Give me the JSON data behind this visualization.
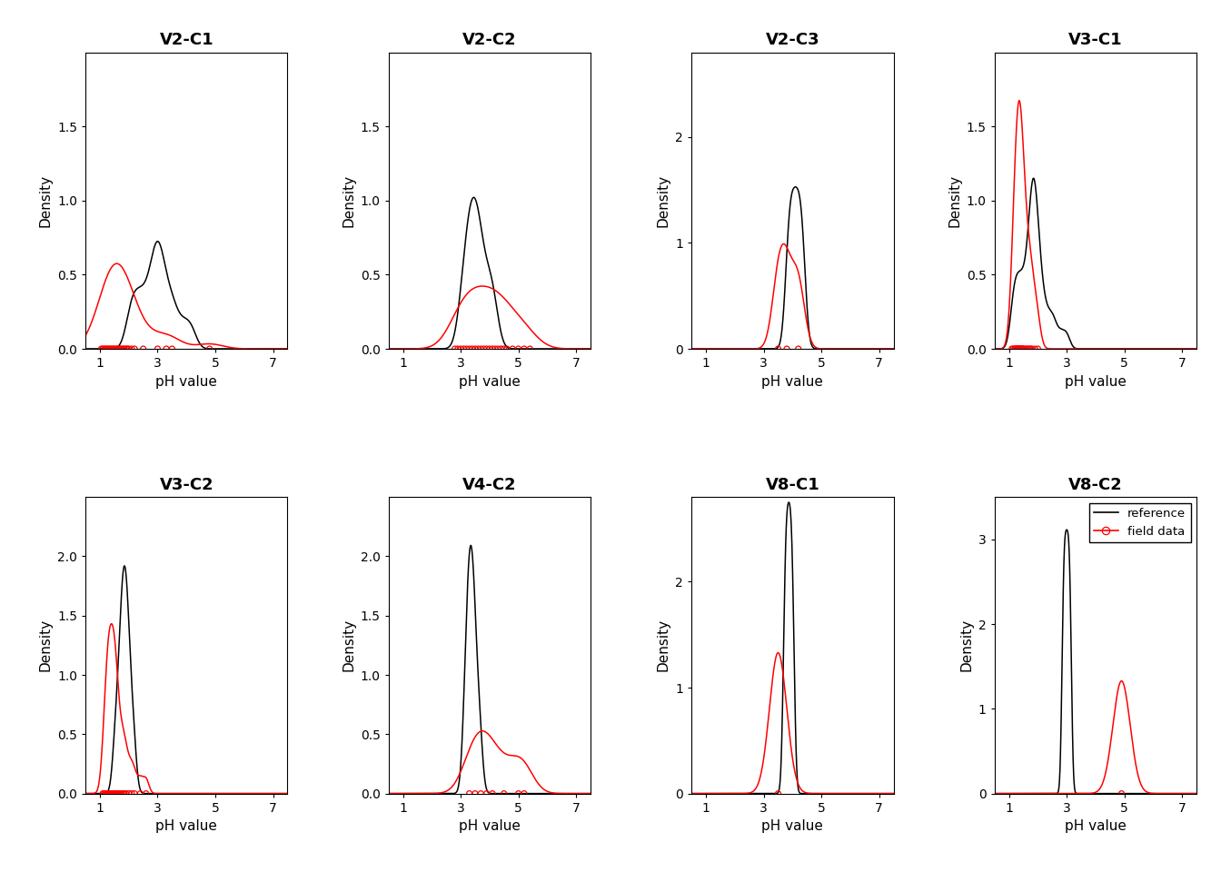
{
  "subplots": [
    {
      "title": "V2-C1",
      "ref_points": [
        2.0,
        2.1,
        2.2,
        2.3,
        2.4,
        2.5,
        2.6,
        2.7,
        2.8,
        2.85,
        2.9,
        2.95,
        3.0,
        3.05,
        3.1,
        3.15,
        3.2,
        3.3,
        3.4,
        3.5,
        3.6,
        3.8,
        4.0,
        4.2
      ],
      "ref_bw": 0.18,
      "field_points": [
        1.05,
        1.1,
        1.15,
        1.2,
        1.25,
        1.3,
        1.35,
        1.4,
        1.45,
        1.5,
        1.55,
        1.6,
        1.65,
        1.7,
        1.75,
        1.8,
        1.85,
        1.9,
        1.95,
        2.0,
        2.1,
        2.2,
        2.5,
        3.0,
        3.3,
        3.5,
        4.8
      ],
      "field_bw": 0.45,
      "ylim": [
        0,
        2.0
      ],
      "yticks": [
        0.0,
        0.5,
        1.0,
        1.5
      ]
    },
    {
      "title": "V2-C2",
      "ref_points": [
        3.0,
        3.1,
        3.2,
        3.25,
        3.3,
        3.35,
        3.4,
        3.45,
        3.5,
        3.55,
        3.6,
        3.65,
        3.7,
        3.8,
        3.9,
        4.0,
        4.1,
        4.2
      ],
      "ref_bw": 0.18,
      "field_points": [
        2.8,
        2.9,
        3.0,
        3.1,
        3.2,
        3.3,
        3.4,
        3.5,
        3.6,
        3.7,
        3.8,
        3.9,
        4.0,
        4.1,
        4.2,
        4.3,
        4.4,
        4.5,
        4.6,
        4.8,
        5.0,
        5.2,
        5.4
      ],
      "field_bw": 0.45,
      "ylim": [
        0,
        2.0
      ],
      "yticks": [
        0.0,
        0.5,
        1.0,
        1.5
      ]
    },
    {
      "title": "V2-C3",
      "ref_points": [
        3.8,
        3.85,
        3.9,
        3.95,
        4.0,
        4.05,
        4.1,
        4.15,
        4.2,
        4.25,
        4.3,
        4.35,
        4.4
      ],
      "ref_bw": 0.12,
      "field_points": [
        3.5,
        3.8,
        4.2
      ],
      "field_bw": 0.22,
      "ylim": [
        0,
        2.8
      ],
      "yticks": [
        0.0,
        1.0,
        2.0
      ]
    },
    {
      "title": "V3-C1",
      "ref_points": [
        1.1,
        1.15,
        1.2,
        1.25,
        1.3,
        1.35,
        1.4,
        1.45,
        1.5,
        1.55,
        1.6,
        1.65,
        1.7,
        1.72,
        1.74,
        1.76,
        1.78,
        1.8,
        1.82,
        1.84,
        1.86,
        1.88,
        1.9,
        1.92,
        1.94,
        1.96,
        1.98,
        2.0,
        2.05,
        2.1,
        2.15,
        2.2,
        2.3,
        2.4,
        2.5,
        2.6,
        2.8,
        3.0
      ],
      "ref_bw": 0.12,
      "field_points": [
        1.1,
        1.15,
        1.2,
        1.22,
        1.24,
        1.26,
        1.28,
        1.3,
        1.32,
        1.34,
        1.36,
        1.38,
        1.4,
        1.42,
        1.44,
        1.46,
        1.48,
        1.5,
        1.55,
        1.6,
        1.65,
        1.7,
        1.75,
        1.8,
        1.9,
        2.0
      ],
      "field_bw": 0.12,
      "ylim": [
        0,
        2.0
      ],
      "yticks": [
        0.0,
        0.5,
        1.0,
        1.5
      ]
    },
    {
      "title": "V3-C2",
      "ref_points": [
        1.5,
        1.55,
        1.6,
        1.65,
        1.7,
        1.72,
        1.74,
        1.76,
        1.78,
        1.8,
        1.82,
        1.84,
        1.86,
        1.88,
        1.9,
        1.92,
        1.94,
        1.96,
        1.98,
        2.0,
        2.05,
        2.1,
        2.15,
        2.2
      ],
      "ref_bw": 0.1,
      "field_points": [
        1.1,
        1.15,
        1.2,
        1.22,
        1.24,
        1.26,
        1.28,
        1.3,
        1.32,
        1.34,
        1.36,
        1.38,
        1.4,
        1.42,
        1.44,
        1.46,
        1.48,
        1.5,
        1.52,
        1.54,
        1.56,
        1.58,
        1.6,
        1.65,
        1.7,
        1.75,
        1.8,
        1.85,
        1.9,
        2.0,
        2.1,
        2.2,
        2.4,
        2.6
      ],
      "field_bw": 0.1,
      "ylim": [
        0,
        2.5
      ],
      "yticks": [
        0.0,
        0.5,
        1.0,
        1.5,
        2.0
      ]
    },
    {
      "title": "V4-C2",
      "ref_points": [
        3.1,
        3.15,
        3.2,
        3.22,
        3.24,
        3.26,
        3.28,
        3.3,
        3.32,
        3.34,
        3.36,
        3.38,
        3.4,
        3.42,
        3.44,
        3.46,
        3.48,
        3.5,
        3.55,
        3.6,
        3.65,
        3.7
      ],
      "ref_bw": 0.1,
      "field_points": [
        3.3,
        3.5,
        3.7,
        3.9,
        4.1,
        4.5,
        5.0,
        5.2
      ],
      "field_bw": 0.38,
      "ylim": [
        0,
        2.5
      ],
      "yticks": [
        0.0,
        0.5,
        1.0,
        1.5,
        2.0
      ]
    },
    {
      "title": "V8-C1",
      "ref_points": [
        3.7,
        3.72,
        3.74,
        3.76,
        3.78,
        3.8,
        3.82,
        3.84,
        3.86,
        3.88,
        3.9,
        3.92,
        3.94,
        3.96,
        3.98,
        4.0,
        4.02,
        4.04
      ],
      "ref_bw": 0.07,
      "field_points": [
        3.5
      ],
      "field_bw": 0.3,
      "ylim": [
        0,
        2.8
      ],
      "yticks": [
        0.0,
        1.0,
        2.0
      ]
    },
    {
      "title": "V8-C2",
      "ref_points": [
        2.85,
        2.87,
        2.89,
        2.91,
        2.93,
        2.95,
        2.97,
        2.99,
        3.01,
        3.03,
        3.05,
        3.07,
        3.09,
        3.11,
        3.13,
        3.15
      ],
      "ref_bw": 0.055,
      "field_points": [
        4.9
      ],
      "field_bw": 0.3,
      "ylim": [
        0,
        3.5
      ],
      "yticks": [
        0,
        1,
        2,
        3
      ]
    }
  ],
  "xlim": [
    0.5,
    7.5
  ],
  "xticks": [
    1,
    3,
    5,
    7
  ],
  "xlabel": "pH value",
  "ylabel": "Density",
  "ref_color": "#000000",
  "field_color": "#FF0000",
  "bg_color": "#FFFFFF",
  "title_fontsize": 13,
  "label_fontsize": 11,
  "tick_fontsize": 10,
  "legend_idx": 7
}
